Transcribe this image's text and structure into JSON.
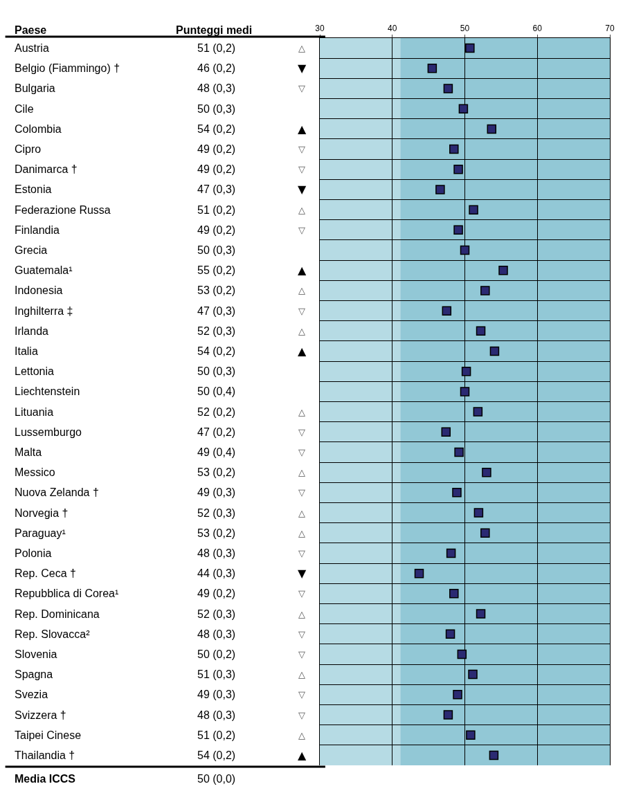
{
  "chart_data": {
    "type": "scatter",
    "orientation": "horizontal",
    "categories": [
      "Austria",
      "Belgio (Fiammingo) †",
      "Bulgaria",
      "Cile",
      "Colombia",
      "Cipro",
      "Danimarca †",
      "Estonia",
      "Federazione Russa",
      "Finlandia",
      "Grecia",
      "Guatemala¹",
      "Indonesia",
      "Inghilterra ‡",
      "Irlanda",
      "Italia",
      "Lettonia",
      "Liechtenstein",
      "Lituania",
      "Lussemburgo",
      "Malta",
      "Messico",
      "Nuova Zelanda †",
      "Norvegia †",
      "Paraguay¹",
      "Polonia",
      "Rep. Ceca †",
      "Repubblica di Corea¹",
      "Rep. Dominicana",
      "Rep. Slovacca²",
      "Slovenia",
      "Spagna",
      "Svezia",
      "Svizzera †",
      "Taipei Cinese",
      "Thailandia †"
    ],
    "values": [
      50.7,
      45.5,
      47.7,
      49.8,
      53.7,
      48.5,
      49.1,
      46.6,
      51.2,
      49.1,
      50.0,
      55.3,
      52.8,
      47.5,
      52.2,
      54.1,
      50.2,
      50.0,
      51.8,
      47.4,
      49.2,
      53.0,
      48.9,
      51.9,
      52.8,
      48.1,
      43.7,
      48.5,
      52.2,
      48.0,
      49.6,
      51.1,
      49.0,
      47.7,
      50.8,
      54.0
    ],
    "value_labels": [
      "51 (0,2)",
      "46 (0,2)",
      "48 (0,3)",
      "50 (0,3)",
      "54 (0,2)",
      "49 (0,2)",
      "49 (0,2)",
      "47 (0,3)",
      "51 (0,2)",
      "49 (0,2)",
      "50 (0,3)",
      "55 (0,2)",
      "53 (0,2)",
      "47 (0,3)",
      "52 (0,3)",
      "54 (0,2)",
      "50 (0,3)",
      "50 (0,4)",
      "52 (0,2)",
      "47 (0,2)",
      "49 (0,4)",
      "53 (0,2)",
      "49 (0,3)",
      "52 (0,3)",
      "53 (0,2)",
      "48 (0,3)",
      "44 (0,3)",
      "49 (0,2)",
      "52 (0,3)",
      "48 (0,3)",
      "50 (0,2)",
      "51 (0,3)",
      "49 (0,3)",
      "48 (0,3)",
      "51 (0,2)",
      "54 (0,2)"
    ],
    "color": "#2b2a72",
    "marker": "square",
    "x2lim": [
      30,
      70
    ],
    "x2ticks": [
      30,
      40,
      50,
      60,
      70
    ],
    "grid": true,
    "bands": [
      {
        "axis": "x",
        "from": 30,
        "to": 41.1,
        "color": "#b6dbe4"
      },
      {
        "axis": "x",
        "from": 41.1,
        "to": 70,
        "color": "#92c8d6"
      }
    ],
    "annotations": [
      "Paese",
      "Punteggi medi",
      "Media ICCS",
      "50 (0,0)",
      "△",
      "▼",
      "▽",
      "▲",
      "▽",
      "▽",
      "▼",
      "△",
      "▽",
      "▲",
      "△",
      "▽",
      "△",
      "▲",
      "△",
      "▽",
      "▽",
      "△",
      "▽",
      "△",
      "△",
      "▽",
      "▼",
      "▽",
      "△",
      "▽",
      "▽",
      "△",
      "▽",
      "▽",
      "△",
      "▲"
    ]
  }
}
